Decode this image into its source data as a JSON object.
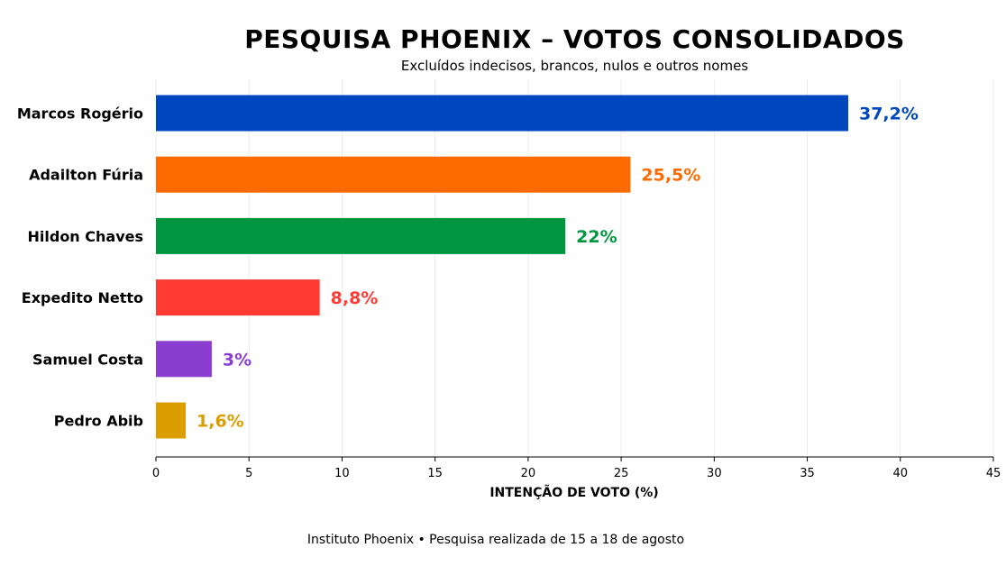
{
  "chart_data": {
    "type": "bar",
    "orientation": "horizontal",
    "title": "PESQUISA PHOENIX – VOTOS CONSOLIDADOS",
    "subtitle": "Excluídos indecisos, brancos, nulos e outros nomes",
    "xlabel": "INTENÇÃO DE VOTO (%)",
    "ylabel": "",
    "xlim": [
      0,
      45
    ],
    "xticks": [
      0,
      5,
      10,
      15,
      20,
      25,
      30,
      35,
      40,
      45
    ],
    "grid": "vertical",
    "categories": [
      "Marcos Rogério",
      "Adailton Fúria",
      "Hildon Chaves",
      "Expedito Netto",
      "Samuel Costa",
      "Pedro Abib"
    ],
    "values": [
      37.2,
      25.5,
      22,
      8.8,
      3,
      1.6
    ],
    "value_labels": [
      "37,2%",
      "25,5%",
      "22%",
      "8,8%",
      "3%",
      "1,6%"
    ],
    "colors": [
      "#0047BF",
      "#FF6A00",
      "#00963F",
      "#FF3A33",
      "#8B3DCF",
      "#DB9E00"
    ]
  },
  "footer": {
    "source": "Instituto Phoenix • Pesquisa realizada de 15 a 18 de agosto"
  }
}
